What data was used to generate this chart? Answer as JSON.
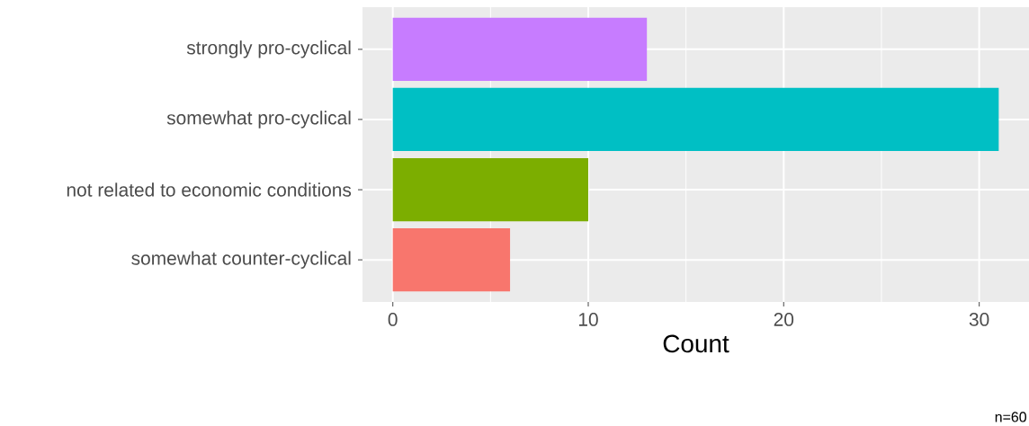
{
  "chart_data": {
    "type": "bar",
    "orientation": "horizontal",
    "categories": [
      "strongly pro-cyclical",
      "somewhat pro-cyclical",
      "not related to economic conditions",
      "somewhat counter-cyclical"
    ],
    "values": [
      13,
      31,
      10,
      6
    ],
    "colors": [
      "#c77cff",
      "#00bfc4",
      "#7cae00",
      "#f8766d"
    ],
    "xlabel": "Count",
    "xlim": [
      -1.55,
      32.55
    ],
    "xticks": [
      0,
      10,
      20,
      30
    ],
    "grid": true,
    "annotations": [
      "n=60"
    ]
  }
}
